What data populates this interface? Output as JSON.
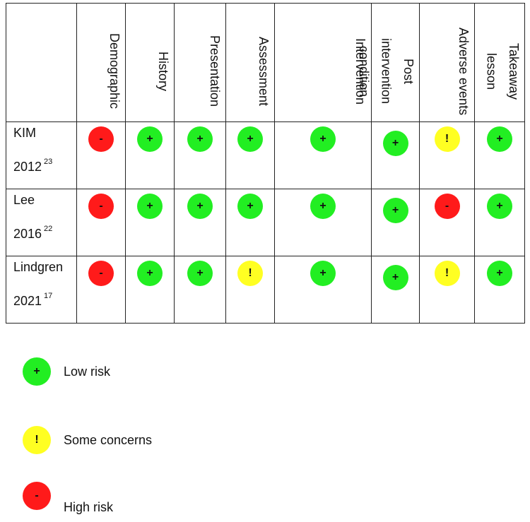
{
  "columns": [
    "Demographic",
    "History",
    "Presentation",
    "Assessment",
    "Intervention",
    "Post\nintervention\ncondition",
    "Adverse events",
    "Takeaway\nlesson"
  ],
  "studies": [
    {
      "name": "KIM",
      "year": "2012",
      "ref": "23",
      "judgements": [
        "high",
        "low",
        "low",
        "low",
        "low",
        "low",
        "some",
        "low"
      ]
    },
    {
      "name": "Lee",
      "year": "2016",
      "ref": "22",
      "judgements": [
        "high",
        "low",
        "low",
        "low",
        "low",
        "low",
        "high",
        "low"
      ]
    },
    {
      "name": "Lindgren",
      "year": "2021",
      "ref": "17",
      "judgements": [
        "high",
        "low",
        "low",
        "some",
        "low",
        "low",
        "some",
        "low"
      ]
    }
  ],
  "symbols": {
    "low": "+",
    "some": "!",
    "high": "-"
  },
  "colors": {
    "low": "#22ee22",
    "some": "#ffff22",
    "high": "#ff1a1a"
  },
  "legend": [
    {
      "key": "low",
      "label": "Low risk"
    },
    {
      "key": "some",
      "label": "Some concerns"
    },
    {
      "key": "high",
      "label": "High risk"
    }
  ]
}
